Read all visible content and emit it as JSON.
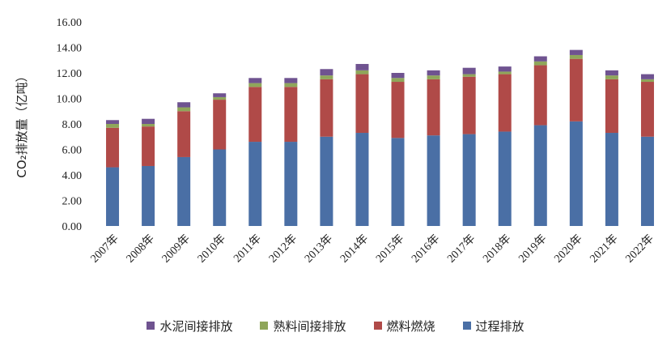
{
  "chart_data": {
    "type": "bar",
    "stacked": true,
    "categories": [
      "2007年",
      "2008年",
      "2009年",
      "2010年",
      "2011年",
      "2012年",
      "2013年",
      "2014年",
      "2015年",
      "2016年",
      "2017年",
      "2018年",
      "2019年",
      "2020年",
      "2021年",
      "2022年"
    ],
    "series": [
      {
        "name": "过程排放",
        "color": "#4A6FA5",
        "values": [
          4.6,
          4.7,
          5.4,
          6.0,
          6.6,
          6.6,
          7.0,
          7.3,
          6.9,
          7.1,
          7.2,
          7.4,
          7.9,
          8.2,
          7.3,
          7.0
        ]
      },
      {
        "name": "燃料燃烧",
        "color": "#B04A48",
        "values": [
          3.1,
          3.1,
          3.6,
          3.9,
          4.3,
          4.3,
          4.5,
          4.6,
          4.4,
          4.4,
          4.5,
          4.5,
          4.7,
          4.9,
          4.2,
          4.3
        ]
      },
      {
        "name": "熟料间接排放",
        "color": "#8FA65A",
        "values": [
          0.3,
          0.2,
          0.3,
          0.2,
          0.3,
          0.3,
          0.3,
          0.3,
          0.3,
          0.3,
          0.2,
          0.2,
          0.3,
          0.3,
          0.3,
          0.2
        ]
      },
      {
        "name": "水泥间接排放",
        "color": "#6F5390",
        "values": [
          0.3,
          0.4,
          0.4,
          0.3,
          0.4,
          0.4,
          0.5,
          0.5,
          0.4,
          0.4,
          0.5,
          0.4,
          0.4,
          0.4,
          0.4,
          0.4
        ]
      }
    ],
    "legend_order": [
      "水泥间接排放",
      "熟料间接排放",
      "燃料燃烧",
      "过程排放"
    ],
    "ylim": [
      0,
      16
    ],
    "yticks": [
      "0.00",
      "2.00",
      "4.00",
      "6.00",
      "8.00",
      "10.00",
      "12.00",
      "14.00",
      "16.00"
    ],
    "ylabel": "CO₂排放量（亿吨）",
    "xlabel": "",
    "title": "",
    "legend_position": "bottom"
  }
}
